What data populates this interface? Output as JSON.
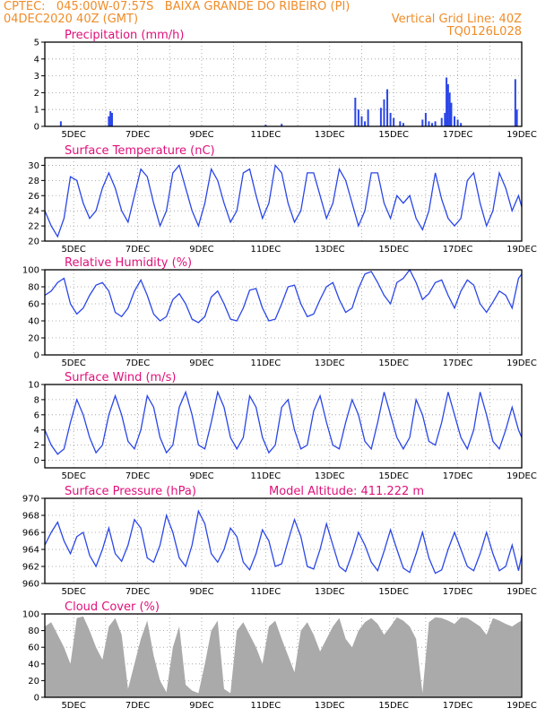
{
  "header": {
    "line1": "CPTEC:   045:00W-07:57S   BAIXA GRANDE DO RIBEIRO (PI)",
    "line2_left": "04DEC2020 40Z (GMT)",
    "line2_right": "Vertical Grid Line: 40Z",
    "line3_right": "TQ0126L028"
  },
  "colors": {
    "header": "#f08c28",
    "title": "#e0107a",
    "series": "#2a46e8",
    "cloud": "#aaaaaa"
  },
  "x_axis": {
    "days": [
      4,
      5,
      6,
      7,
      8,
      9,
      10,
      11,
      12,
      13,
      14,
      15,
      16,
      17,
      18,
      19
    ],
    "labels": [
      "5DEC",
      "7DEC",
      "9DEC",
      "11DEC",
      "13DEC",
      "15DEC",
      "17DEC",
      "19DEC"
    ],
    "label_days": [
      5,
      7,
      9,
      11,
      13,
      15,
      17,
      19
    ],
    "range": [
      4.1,
      19
    ]
  },
  "chart_data": [
    {
      "type": "bar",
      "title": "Precipitation (mm/h)",
      "ylim": [
        0,
        5
      ],
      "yticks": [
        0,
        1,
        2,
        3,
        4,
        5
      ],
      "x": [
        4.6,
        6.1,
        6.15,
        6.2,
        11,
        11.5,
        13.8,
        13.9,
        14.0,
        14.1,
        14.2,
        14.6,
        14.7,
        14.8,
        14.9,
        15.0,
        15.2,
        15.3,
        15.9,
        16.0,
        16.1,
        16.2,
        16.3,
        16.5,
        16.6,
        16.65,
        16.7,
        16.75,
        16.8,
        16.9,
        17.0,
        17.1,
        18.8,
        18.85
      ],
      "values": [
        0.3,
        0.6,
        0.9,
        0.8,
        0.1,
        0.15,
        1.7,
        1.0,
        0.6,
        0.3,
        1.0,
        1.1,
        1.6,
        2.2,
        0.8,
        0.5,
        0.3,
        0.2,
        0.4,
        0.8,
        0.3,
        0.2,
        0.3,
        0.5,
        0.8,
        2.9,
        2.5,
        2.0,
        1.4,
        0.6,
        0.4,
        0.2,
        2.8,
        1.0
      ]
    },
    {
      "type": "line",
      "title": "Surface Temperature (nC)",
      "ylim": [
        20,
        31
      ],
      "yticks": [
        20,
        22,
        24,
        26,
        28,
        30
      ],
      "x": [
        4.1,
        4.3,
        4.5,
        4.7,
        4.9,
        5.1,
        5.3,
        5.5,
        5.7,
        5.9,
        6.1,
        6.3,
        6.5,
        6.7,
        6.9,
        7.1,
        7.3,
        7.5,
        7.7,
        7.9,
        8.1,
        8.3,
        8.5,
        8.7,
        8.9,
        9.1,
        9.3,
        9.5,
        9.7,
        9.9,
        10.1,
        10.3,
        10.5,
        10.7,
        10.9,
        11.1,
        11.3,
        11.5,
        11.7,
        11.9,
        12.1,
        12.3,
        12.5,
        12.7,
        12.9,
        13.1,
        13.3,
        13.5,
        13.7,
        13.9,
        14.1,
        14.3,
        14.5,
        14.7,
        14.9,
        15.1,
        15.3,
        15.5,
        15.7,
        15.9,
        16.1,
        16.3,
        16.5,
        16.7,
        16.9,
        17.1,
        17.3,
        17.5,
        17.7,
        17.9,
        18.1,
        18.3,
        18.5,
        18.7,
        18.9,
        19.0
      ],
      "values": [
        24,
        22,
        20.6,
        23,
        28.5,
        28,
        25,
        23,
        24,
        27,
        29,
        27,
        24,
        22.5,
        26,
        29.5,
        28.5,
        25,
        22,
        24,
        29,
        30,
        27,
        24,
        22,
        25,
        29.5,
        28,
        25,
        22.5,
        24,
        29,
        29.5,
        26,
        23,
        25,
        30,
        29,
        25,
        22.5,
        24,
        29,
        29,
        26,
        23,
        25,
        29.5,
        28,
        25,
        22,
        24,
        29,
        29,
        25,
        23,
        26,
        25,
        26,
        23,
        21.5,
        24,
        29,
        25.5,
        23,
        22,
        23,
        28,
        29,
        25,
        22,
        24,
        29,
        27,
        24,
        26,
        24.5
      ]
    },
    {
      "type": "line",
      "title": "Relative Humidity (%)",
      "ylim": [
        0,
        100
      ],
      "yticks": [
        0,
        20,
        40,
        60,
        80,
        100
      ],
      "x": [
        4.1,
        4.3,
        4.5,
        4.7,
        4.9,
        5.1,
        5.3,
        5.5,
        5.7,
        5.9,
        6.1,
        6.3,
        6.5,
        6.7,
        6.9,
        7.1,
        7.3,
        7.5,
        7.7,
        7.9,
        8.1,
        8.3,
        8.5,
        8.7,
        8.9,
        9.1,
        9.3,
        9.5,
        9.7,
        9.9,
        10.1,
        10.3,
        10.5,
        10.7,
        10.9,
        11.1,
        11.3,
        11.5,
        11.7,
        11.9,
        12.1,
        12.3,
        12.5,
        12.7,
        12.9,
        13.1,
        13.3,
        13.5,
        13.7,
        13.9,
        14.1,
        14.3,
        14.5,
        14.7,
        14.9,
        15.1,
        15.3,
        15.5,
        15.7,
        15.9,
        16.1,
        16.3,
        16.5,
        16.7,
        16.9,
        17.1,
        17.3,
        17.5,
        17.7,
        17.9,
        18.1,
        18.3,
        18.5,
        18.7,
        18.9,
        19.0
      ],
      "values": [
        70,
        75,
        85,
        90,
        60,
        48,
        55,
        70,
        82,
        85,
        75,
        50,
        45,
        55,
        75,
        88,
        70,
        48,
        40,
        45,
        65,
        72,
        60,
        42,
        38,
        45,
        68,
        75,
        60,
        42,
        40,
        55,
        76,
        78,
        55,
        40,
        42,
        60,
        80,
        82,
        60,
        45,
        48,
        65,
        80,
        85,
        65,
        50,
        55,
        78,
        95,
        98,
        85,
        70,
        60,
        85,
        90,
        100,
        85,
        65,
        72,
        85,
        88,
        70,
        55,
        75,
        88,
        82,
        60,
        50,
        62,
        75,
        70,
        55,
        90,
        95
      ]
    },
    {
      "type": "line",
      "title": "Surface Wind (m/s)",
      "ylim": [
        -1,
        10
      ],
      "yticks": [
        0,
        2,
        4,
        6,
        8,
        10
      ],
      "x": [
        4.1,
        4.3,
        4.5,
        4.7,
        4.9,
        5.1,
        5.3,
        5.5,
        5.7,
        5.9,
        6.1,
        6.3,
        6.5,
        6.7,
        6.9,
        7.1,
        7.3,
        7.5,
        7.7,
        7.9,
        8.1,
        8.3,
        8.5,
        8.7,
        8.9,
        9.1,
        9.3,
        9.5,
        9.7,
        9.9,
        10.1,
        10.3,
        10.5,
        10.7,
        10.9,
        11.1,
        11.3,
        11.5,
        11.7,
        11.9,
        12.1,
        12.3,
        12.5,
        12.7,
        12.9,
        13.1,
        13.3,
        13.5,
        13.7,
        13.9,
        14.1,
        14.3,
        14.5,
        14.7,
        14.9,
        15.1,
        15.3,
        15.5,
        15.7,
        15.9,
        16.1,
        16.3,
        16.5,
        16.7,
        16.9,
        17.1,
        17.3,
        17.5,
        17.7,
        17.9,
        18.1,
        18.3,
        18.5,
        18.7,
        18.9,
        19.0
      ],
      "values": [
        4,
        2,
        0.8,
        1.5,
        5,
        8,
        6,
        3,
        1,
        2,
        6,
        8.5,
        6,
        2.5,
        1.5,
        4,
        8.5,
        7,
        3,
        1,
        2,
        7,
        9,
        6,
        2,
        1.5,
        5,
        9,
        7,
        3,
        1.5,
        3,
        8.5,
        7,
        3,
        1,
        2,
        7,
        8,
        4,
        1.5,
        2,
        6.5,
        8.5,
        5,
        2,
        1.5,
        5,
        8,
        6,
        2.5,
        1.5,
        5,
        9,
        6,
        3,
        1.5,
        3,
        8,
        6,
        2.5,
        2,
        5,
        9,
        6,
        3,
        1.5,
        4,
        9,
        6,
        2.5,
        1.5,
        4,
        7,
        4,
        3
      ]
    },
    {
      "type": "line",
      "title": "Surface Pressure (hPa)",
      "annotation": "Model Altitude: 411.222 m",
      "ylim": [
        960,
        970
      ],
      "yticks": [
        960,
        962,
        964,
        966,
        968,
        970
      ],
      "x": [
        4.1,
        4.3,
        4.5,
        4.7,
        4.9,
        5.1,
        5.3,
        5.5,
        5.7,
        5.9,
        6.1,
        6.3,
        6.5,
        6.7,
        6.9,
        7.1,
        7.3,
        7.5,
        7.7,
        7.9,
        8.1,
        8.3,
        8.5,
        8.7,
        8.9,
        9.1,
        9.3,
        9.5,
        9.7,
        9.9,
        10.1,
        10.3,
        10.5,
        10.7,
        10.9,
        11.1,
        11.3,
        11.5,
        11.7,
        11.9,
        12.1,
        12.3,
        12.5,
        12.7,
        12.9,
        13.1,
        13.3,
        13.5,
        13.7,
        13.9,
        14.1,
        14.3,
        14.5,
        14.7,
        14.9,
        15.1,
        15.3,
        15.5,
        15.7,
        15.9,
        16.1,
        16.3,
        16.5,
        16.7,
        16.9,
        17.1,
        17.3,
        17.5,
        17.7,
        17.9,
        18.1,
        18.3,
        18.5,
        18.7,
        18.9,
        19.0
      ],
      "values": [
        964.5,
        966,
        967.2,
        965,
        963.5,
        965.5,
        966,
        963.3,
        962,
        964,
        966.5,
        963.5,
        962.6,
        964.5,
        967.5,
        966.5,
        963,
        962.5,
        964.5,
        968,
        966,
        963,
        962,
        964.5,
        968.5,
        967,
        963.5,
        962.5,
        964,
        966.5,
        965.5,
        962.5,
        961.6,
        963.5,
        966.3,
        965,
        962,
        962.3,
        965,
        967.5,
        965.5,
        962,
        961.7,
        964,
        967,
        964.5,
        962,
        961.4,
        963.5,
        966,
        964.5,
        962.5,
        961.5,
        963.8,
        966.3,
        964,
        961.8,
        961.3,
        963.5,
        966,
        963,
        961.2,
        961.6,
        964,
        966,
        964,
        962,
        961.5,
        963.5,
        966,
        963.5,
        961.5,
        962,
        964.5,
        961.5,
        963.3
      ]
    },
    {
      "type": "area",
      "title": "Cloud Cover (%)",
      "ylim": [
        0,
        100
      ],
      "yticks": [
        0,
        20,
        40,
        60,
        80,
        100
      ],
      "x": [
        4.1,
        4.3,
        4.5,
        4.7,
        4.9,
        5.1,
        5.3,
        5.5,
        5.7,
        5.9,
        6.1,
        6.3,
        6.5,
        6.7,
        6.9,
        7.1,
        7.3,
        7.5,
        7.7,
        7.9,
        8.1,
        8.3,
        8.5,
        8.7,
        8.9,
        9.1,
        9.3,
        9.5,
        9.7,
        9.9,
        10.1,
        10.3,
        10.5,
        10.7,
        10.9,
        11.1,
        11.3,
        11.5,
        11.7,
        11.9,
        12.1,
        12.3,
        12.5,
        12.7,
        12.9,
        13.1,
        13.3,
        13.5,
        13.7,
        13.9,
        14.1,
        14.3,
        14.5,
        14.7,
        14.9,
        15.1,
        15.3,
        15.5,
        15.7,
        15.9,
        16.1,
        16.3,
        16.5,
        16.7,
        16.9,
        17.1,
        17.3,
        17.5,
        17.7,
        17.9,
        18.1,
        18.3,
        18.5,
        18.7,
        18.9,
        19.0
      ],
      "values": [
        85,
        90,
        75,
        60,
        40,
        95,
        97,
        80,
        60,
        45,
        85,
        95,
        75,
        10,
        40,
        70,
        92,
        50,
        20,
        6,
        60,
        85,
        15,
        8,
        5,
        40,
        80,
        92,
        10,
        5,
        80,
        90,
        75,
        60,
        40,
        85,
        92,
        70,
        50,
        30,
        80,
        90,
        75,
        55,
        70,
        85,
        95,
        70,
        60,
        80,
        90,
        95,
        88,
        75,
        85,
        96,
        92,
        85,
        70,
        5,
        90,
        96,
        95,
        92,
        88,
        96,
        95,
        90,
        85,
        75,
        95,
        92,
        88,
        85,
        90,
        92
      ]
    }
  ]
}
